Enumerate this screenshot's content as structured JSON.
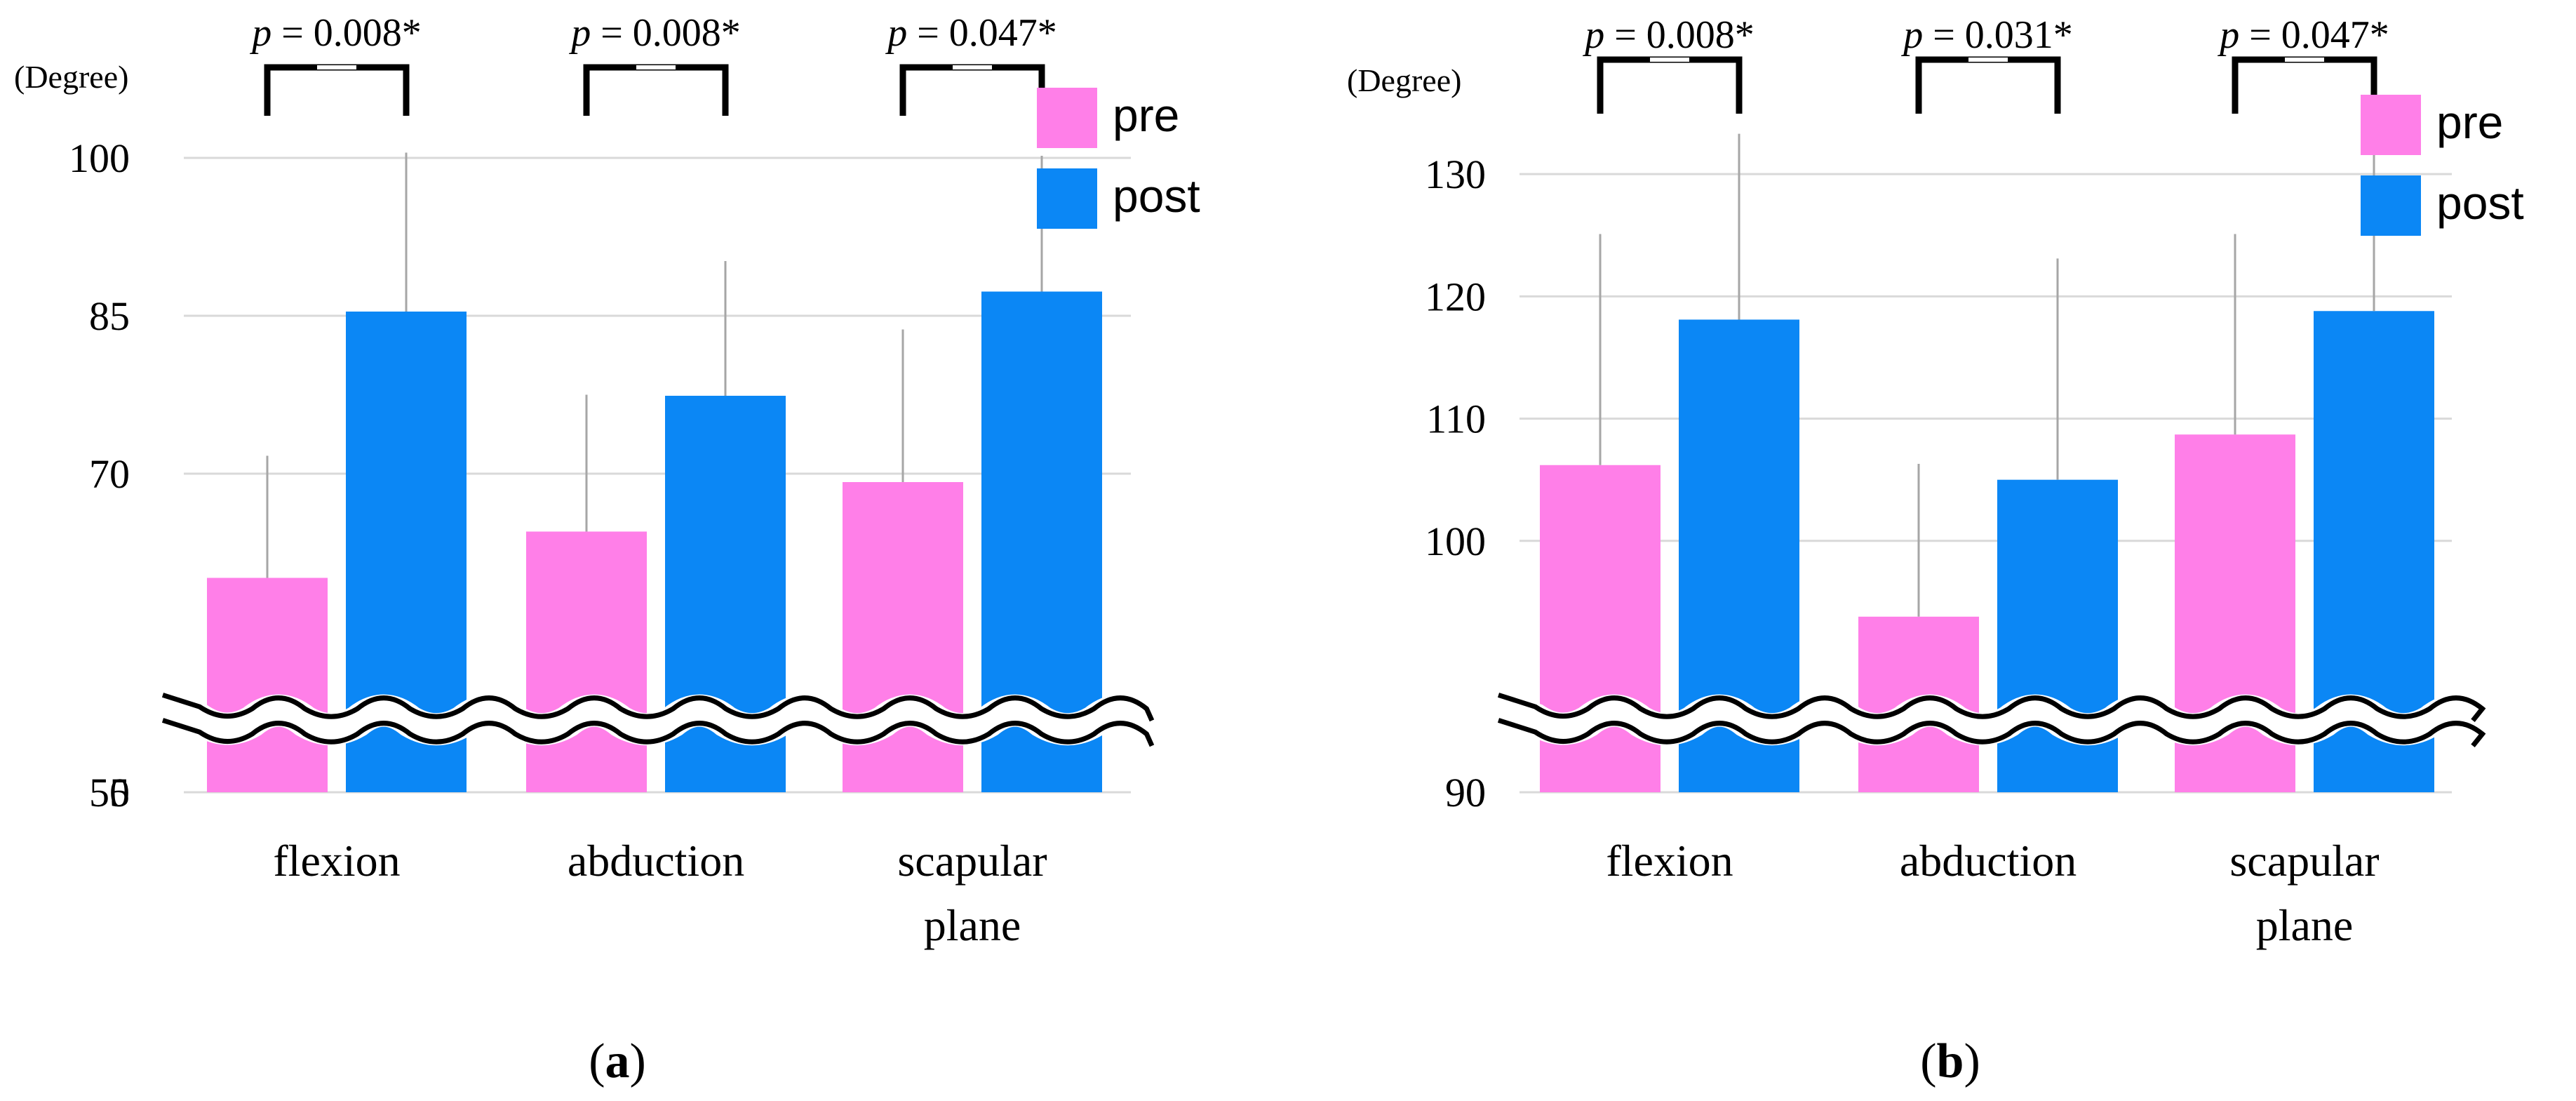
{
  "figure_labels": [
    {
      "open": "(",
      "letter": "a",
      "close": ")"
    },
    {
      "open": "(",
      "letter": "b",
      "close": ")"
    }
  ],
  "chart_data": [
    {
      "type": "bar",
      "panel": "a",
      "unit_label": "(Degree)",
      "categories": [
        [
          "flexion"
        ],
        [
          "abduction"
        ],
        [
          "scapular",
          "plane"
        ]
      ],
      "tick_labels": [
        "0",
        "55",
        "70",
        "85",
        "100"
      ],
      "axis_break": {
        "below": 55,
        "placeholder_label": "0"
      },
      "ylim": [
        49,
        101
      ],
      "series": [
        {
          "name": "pre",
          "color": "#ff7fe8",
          "values": [
            60.1,
            64.5,
            69.2
          ],
          "error": [
            11.6,
            13.0,
            14.5
          ]
        },
        {
          "name": "post",
          "color": "#0b87f5",
          "values": [
            85.4,
            77.4,
            87.3
          ],
          "error": [
            15.1,
            12.8,
            12.9
          ]
        }
      ],
      "significance": [
        {
          "prefix": "p",
          "text": " = 0.008*"
        },
        {
          "prefix": "p",
          "text": " = 0.008*"
        },
        {
          "prefix": "p",
          "text": " = 0.047*"
        }
      ],
      "legend_position": "top-right"
    },
    {
      "type": "bar",
      "panel": "b",
      "unit_label": "(Degree)",
      "categories": [
        [
          "flexion"
        ],
        [
          "abduction"
        ],
        [
          "scapular",
          "plane"
        ]
      ],
      "tick_labels": [
        "0",
        "90",
        "100",
        "110",
        "120",
        "130"
      ],
      "axis_break": {
        "below": 90,
        "placeholder_label": "0"
      },
      "ylim": [
        85,
        131.5
      ],
      "series": [
        {
          "name": "pre",
          "color": "#ff7fe8",
          "values": [
            106.2,
            93.8,
            108.7
          ],
          "error": [
            18.9,
            12.5,
            16.4
          ]
        },
        {
          "name": "post",
          "color": "#0b87f5",
          "values": [
            118.1,
            105.0,
            118.8
          ],
          "error": [
            15.2,
            18.1,
            13.5
          ]
        }
      ],
      "significance": [
        {
          "prefix": "p",
          "text": " = 0.008*"
        },
        {
          "prefix": "p",
          "text": " = 0.031*"
        },
        {
          "prefix": "p",
          "text": " = 0.047*"
        }
      ],
      "legend_position": "top-right"
    }
  ]
}
